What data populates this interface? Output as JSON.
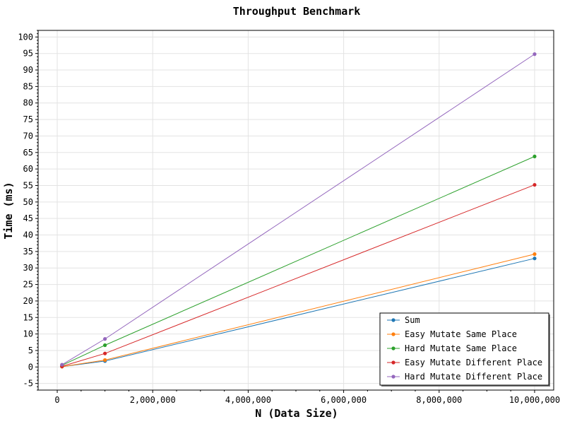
{
  "chart_data": {
    "type": "line",
    "title": "Throughput Benchmark",
    "xlabel": "N (Data Size)",
    "ylabel": "Time (ms)",
    "xlim": [
      -400000,
      10400000
    ],
    "ylim": [
      -7,
      102
    ],
    "x_ticks": [
      0,
      2000000,
      4000000,
      6000000,
      8000000,
      10000000
    ],
    "x_tick_labels": [
      "0",
      "2,000,000",
      "4,000,000",
      "6,000,000",
      "8,000,000",
      "10,000,000"
    ],
    "y_ticks": [
      -5,
      0,
      5,
      10,
      15,
      20,
      25,
      30,
      35,
      40,
      45,
      50,
      55,
      60,
      65,
      70,
      75,
      80,
      85,
      90,
      95,
      100
    ],
    "y_tick_labels": [
      "-5",
      "0",
      "5",
      "10",
      "15",
      "20",
      "25",
      "30",
      "35",
      "40",
      "45",
      "50",
      "55",
      "60",
      "65",
      "70",
      "75",
      "80",
      "85",
      "90",
      "95",
      "100"
    ],
    "grid": true,
    "legend_position": "bottom-right",
    "x": [
      100000,
      1000000,
      10000000
    ],
    "series": [
      {
        "name": "Sum",
        "color": "#1f77b4",
        "values": [
          0.1,
          1.8,
          32.9
        ]
      },
      {
        "name": "Easy Mutate Same Place",
        "color": "#ff7f0e",
        "values": [
          0.1,
          2.1,
          34.2
        ]
      },
      {
        "name": "Hard Mutate Same Place",
        "color": "#2ca02c",
        "values": [
          0.5,
          6.6,
          63.8
        ]
      },
      {
        "name": "Easy Mutate Different Place",
        "color": "#d62728",
        "values": [
          0.2,
          4.1,
          55.2
        ]
      },
      {
        "name": "Hard Mutate Different Place",
        "color": "#9467bd",
        "values": [
          0.7,
          8.5,
          94.8
        ]
      }
    ]
  }
}
